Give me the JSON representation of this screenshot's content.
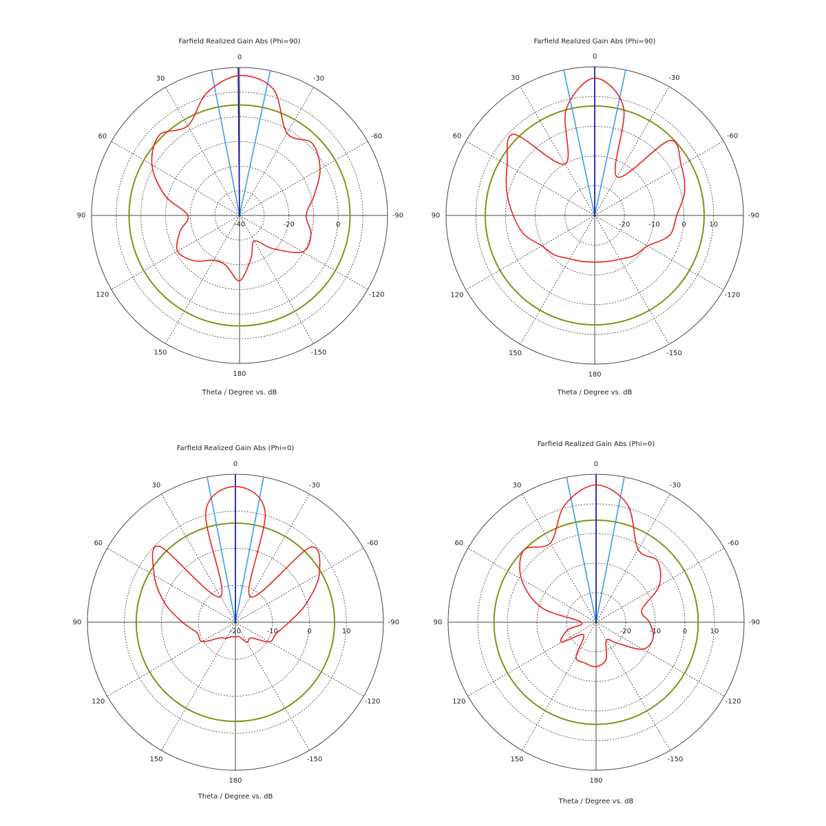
{
  "chart_data": [
    {
      "type": "polar",
      "title": "Farfield Realized Gain Abs (Phi=90)",
      "xlabel": "Theta / Degree vs. dB",
      "x": [
        -180,
        -165,
        -150,
        -135,
        -120,
        -105,
        -90,
        -75,
        -60,
        -45,
        -30,
        -15,
        0,
        15,
        30,
        45,
        60,
        75,
        90,
        105,
        120,
        135,
        150,
        165
      ],
      "values": [
        -13.5,
        -22,
        -28,
        -21,
        -10.5,
        -10,
        -13,
        -8.7,
        -2.3,
        1.5,
        -1.5,
        13,
        16.7,
        11.4,
        2,
        6,
        1,
        -8.7,
        -19,
        -15,
        -11,
        -14,
        -19,
        -19
      ],
      "color": "#e8201c",
      "xticks": [
        0,
        30,
        60,
        90,
        120,
        150,
        180,
        -150,
        -120,
        -90,
        -60,
        -30
      ],
      "rlim": [
        -40,
        20
      ],
      "rticks": [
        -40,
        -20,
        0
      ],
      "rgrid": [
        -30,
        -20,
        -10,
        0,
        10
      ],
      "threshold": 4.8,
      "threshold_color": "#7d9418",
      "beam_direction": 0.5,
      "beam_color": "#1c1ca8",
      "beamwidth_limits": [
        11,
        -12
      ],
      "beamwidth_color": "#3a9ee4"
    },
    {
      "type": "polar",
      "title": "Farfield Realized Gain Abs (Phi=90)",
      "xlabel": "Theta / Degree vs. dB",
      "x": [
        -180,
        -165,
        -150,
        -135,
        -120,
        -105,
        -90,
        -75,
        -60,
        -45,
        -30,
        -15,
        0,
        15,
        30,
        45,
        60,
        75,
        90,
        105,
        120,
        135,
        150,
        165
      ],
      "values": [
        -14.3,
        -14,
        -13,
        -11,
        -9.5,
        -4,
        -2.4,
        1.3,
        3.6,
        5.6,
        -15,
        7.5,
        16.2,
        7,
        -10,
        8.6,
        4,
        0.6,
        -2.6,
        -5.4,
        -9.5,
        -11.1,
        -13.2,
        -14
      ],
      "color": "#e8201c",
      "xticks": [
        0,
        30,
        60,
        90,
        120,
        150,
        180,
        -150,
        -120,
        -90,
        -60,
        -30
      ],
      "rlim": [
        -30,
        20
      ],
      "rticks": [
        -20,
        -10,
        0,
        10
      ],
      "rgrid": [
        -20,
        -10,
        0,
        10
      ],
      "threshold": 6.8,
      "threshold_color": "#7d9418",
      "beam_direction": 0,
      "beam_color": "#1c1ca8",
      "beamwidth_limits": [
        12,
        -12
      ],
      "beamwidth_color": "#3a9ee4"
    },
    {
      "type": "polar",
      "title": "Farfield Realized Gain Abs (Phi=0)",
      "xlabel": "Theta / Degree vs. dB",
      "x": [
        -180,
        -165,
        -150,
        -135,
        -120,
        -105,
        -90,
        -75,
        -60,
        -45,
        -30,
        -15,
        0,
        15,
        30,
        45,
        60,
        75,
        90,
        105,
        120,
        135,
        150,
        165
      ],
      "values": [
        -16,
        -16,
        -13.7,
        -14,
        -9.4,
        -8.5,
        -5.5,
        -0.1,
        6.2,
        8.6,
        -12,
        11,
        16.7,
        11,
        -12,
        9,
        5.3,
        -0.3,
        -5.7,
        -9.2,
        -9.6,
        -14,
        -15,
        -16
      ],
      "color": "#e8201c",
      "xticks": [
        0,
        30,
        60,
        90,
        120,
        150,
        180,
        -150,
        -120,
        -90,
        -60,
        -30
      ],
      "rlim": [
        -20,
        20
      ],
      "rticks": [
        -20,
        -10,
        0,
        10
      ],
      "rgrid": [
        -10,
        0,
        10
      ],
      "threshold": 6.8,
      "threshold_color": "#7d9418",
      "beam_direction": 0,
      "beam_color": "#1c1ca8",
      "beamwidth_limits": [
        11,
        -11
      ],
      "beamwidth_color": "#3a9ee4"
    },
    {
      "type": "polar",
      "title": "Farfield Realized Gain Abs (Phi=0)",
      "xlabel": "Theta / Degree vs. dB",
      "x": [
        -180,
        -165,
        -150,
        -135,
        -120,
        -105,
        -90,
        -75,
        -60,
        -45,
        -30,
        -15,
        0,
        15,
        30,
        45,
        60,
        75,
        90,
        105,
        120,
        135,
        150,
        165
      ],
      "values": [
        -15,
        -17,
        -23,
        -20,
        -11.8,
        -10,
        -12,
        -14,
        -5.4,
        -0.7,
        -1.6,
        11.1,
        16.4,
        11,
        0.9,
        4.5,
        -0.9,
        -10.9,
        -25,
        -20,
        -16.5,
        -24,
        -16.4,
        -15.7
      ],
      "color": "#e8201c",
      "xticks": [
        0,
        30,
        60,
        90,
        120,
        150,
        180,
        -150,
        -120,
        -90,
        -60,
        -30
      ],
      "rlim": [
        -30,
        20
      ],
      "rticks": [
        -20,
        -10,
        0,
        10
      ],
      "rgrid": [
        -20,
        -10,
        0,
        10
      ],
      "threshold": 4.5,
      "threshold_color": "#7d9418",
      "beam_direction": 0,
      "beam_color": "#1c1ca8",
      "beamwidth_limits": [
        11.5,
        -11
      ],
      "beamwidth_color": "#3a9ee4"
    }
  ]
}
